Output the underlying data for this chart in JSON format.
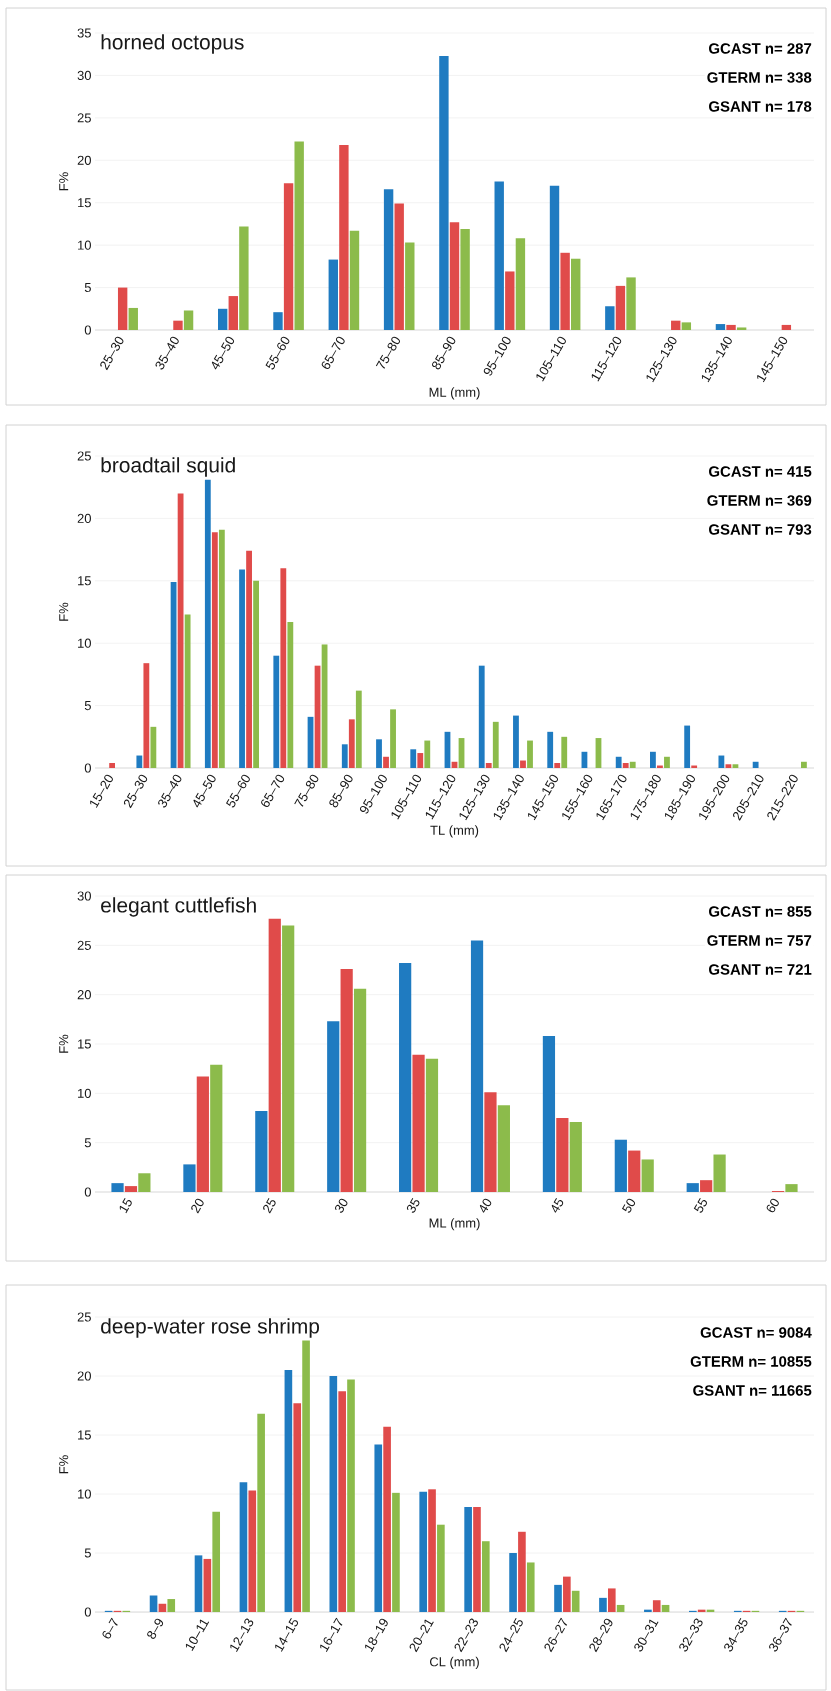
{
  "chart_data": [
    {
      "type": "bar",
      "title": "horned octopus",
      "xlabel": "ML (mm)",
      "ylabel": "F%",
      "grid": "y",
      "categories": [
        "25–30",
        "35–40",
        "45–50",
        "55–60",
        "65–70",
        "75–80",
        "85–90",
        "95–100",
        "105–110",
        "115–120",
        "125–130",
        "135–140",
        "145–150"
      ],
      "series": [
        {
          "color": "#1f7bc1",
          "values": [
            null,
            null,
            2.5,
            2.1,
            8.3,
            16.6,
            32.3,
            17.5,
            17.0,
            2.8,
            null,
            0.7,
            null
          ]
        },
        {
          "color": "#e04b4a",
          "values": [
            5.0,
            1.1,
            4.0,
            17.3,
            21.8,
            14.9,
            12.7,
            6.9,
            9.1,
            5.2,
            1.1,
            0.6,
            0.6
          ]
        },
        {
          "color": "#8cbb4b",
          "values": [
            2.6,
            2.3,
            12.2,
            22.2,
            11.7,
            10.3,
            11.9,
            10.8,
            8.4,
            6.2,
            0.9,
            0.3,
            null
          ]
        }
      ],
      "ylim": [
        0,
        35
      ],
      "yticks": [
        0,
        5,
        10,
        15,
        20,
        25,
        30,
        35
      ],
      "annotations": [
        "GCAST   n= 287",
        "GTERM   n= 338",
        "GSANT   n= 178"
      ]
    },
    {
      "type": "bar",
      "title": "broadtail squid",
      "xlabel": "TL (mm)",
      "ylabel": "F%",
      "grid": "y",
      "categories": [
        "15–20",
        "25–30",
        "35–40",
        "45–50",
        "55–60",
        "65–70",
        "75–80",
        "85–90",
        "95–100",
        "105–110",
        "115–120",
        "125–130",
        "135–140",
        "145–150",
        "155–160",
        "165–170",
        "175–180",
        "185–190",
        "195–200",
        "205–210",
        "215–220"
      ],
      "series": [
        {
          "color": "#1f7bc1",
          "values": [
            null,
            1.0,
            14.9,
            23.1,
            15.9,
            9.0,
            4.1,
            1.9,
            2.3,
            1.5,
            2.9,
            8.2,
            4.2,
            2.9,
            1.3,
            0.9,
            1.3,
            3.4,
            1.0,
            0.5,
            null
          ]
        },
        {
          "color": "#e04b4a",
          "values": [
            0.4,
            8.4,
            22.0,
            18.9,
            17.4,
            16.0,
            8.2,
            3.9,
            0.9,
            1.2,
            0.5,
            0.4,
            0.6,
            0.4,
            null,
            0.4,
            0.2,
            0.2,
            0.3,
            null,
            null
          ]
        },
        {
          "color": "#8cbb4b",
          "values": [
            null,
            3.3,
            12.3,
            19.1,
            15.0,
            11.7,
            9.9,
            6.2,
            4.7,
            2.2,
            2.4,
            3.7,
            2.2,
            2.5,
            2.4,
            0.5,
            0.9,
            null,
            0.3,
            null,
            0.5
          ]
        }
      ],
      "ylim": [
        0,
        25
      ],
      "yticks": [
        0,
        5,
        10,
        15,
        20,
        25
      ],
      "annotations": [
        "GCAST   n= 415",
        "GTERM   n= 369",
        "GSANT   n= 793"
      ]
    },
    {
      "type": "bar",
      "title": "elegant cuttlefish",
      "xlabel": "ML (mm)",
      "ylabel": "F%",
      "grid": "y",
      "categories": [
        "15",
        "20",
        "25",
        "30",
        "35",
        "40",
        "45",
        "50",
        "55",
        "60"
      ],
      "series": [
        {
          "color": "#1f7bc1",
          "values": [
            0.9,
            2.8,
            8.2,
            17.3,
            23.2,
            25.5,
            15.8,
            5.3,
            0.9,
            null
          ]
        },
        {
          "color": "#e04b4a",
          "values": [
            0.6,
            11.7,
            27.7,
            22.6,
            13.9,
            10.1,
            7.5,
            4.2,
            1.2,
            0.1
          ]
        },
        {
          "color": "#8cbb4b",
          "values": [
            1.9,
            12.9,
            27.0,
            20.6,
            13.5,
            8.8,
            7.1,
            3.3,
            3.8,
            0.8
          ]
        }
      ],
      "ylim": [
        0,
        30
      ],
      "yticks": [
        0,
        5,
        10,
        15,
        20,
        25,
        30
      ],
      "annotations": [
        "GCAST   n= 855",
        "GTERM   n= 757",
        "GSANT   n= 721"
      ]
    },
    {
      "type": "bar",
      "title": "deep-water rose shrimp",
      "xlabel": "CL (mm)",
      "ylabel": "F%",
      "grid": "y",
      "categories": [
        "6–7",
        "8–9",
        "10–11",
        "12–13",
        "14–15",
        "16–17",
        "18–19",
        "20–21",
        "22–23",
        "24–25",
        "26–27",
        "28–29",
        "30–31",
        "32–33",
        "34–35",
        "36–37"
      ],
      "series": [
        {
          "color": "#1f7bc1",
          "values": [
            0.1,
            1.4,
            4.8,
            11.0,
            20.5,
            20.0,
            14.2,
            10.2,
            8.9,
            5.0,
            2.3,
            1.2,
            0.2,
            0.1,
            0.1,
            0.1
          ]
        },
        {
          "color": "#e04b4a",
          "values": [
            0.1,
            0.7,
            4.5,
            10.3,
            17.7,
            18.7,
            15.7,
            10.4,
            8.9,
            6.8,
            3.0,
            2.0,
            1.0,
            0.2,
            0.1,
            0.1
          ]
        },
        {
          "color": "#8cbb4b",
          "values": [
            0.1,
            1.1,
            8.5,
            16.8,
            23.0,
            19.7,
            10.1,
            7.4,
            6.0,
            4.2,
            1.8,
            0.6,
            0.6,
            0.2,
            0.1,
            0.1
          ]
        }
      ],
      "ylim": [
        0,
        25
      ],
      "yticks": [
        0,
        5,
        10,
        15,
        20,
        25
      ],
      "annotations": [
        "GCAST   n= 9084",
        "GTERM   n= 10855",
        "GSANT   n= 11665"
      ]
    }
  ]
}
